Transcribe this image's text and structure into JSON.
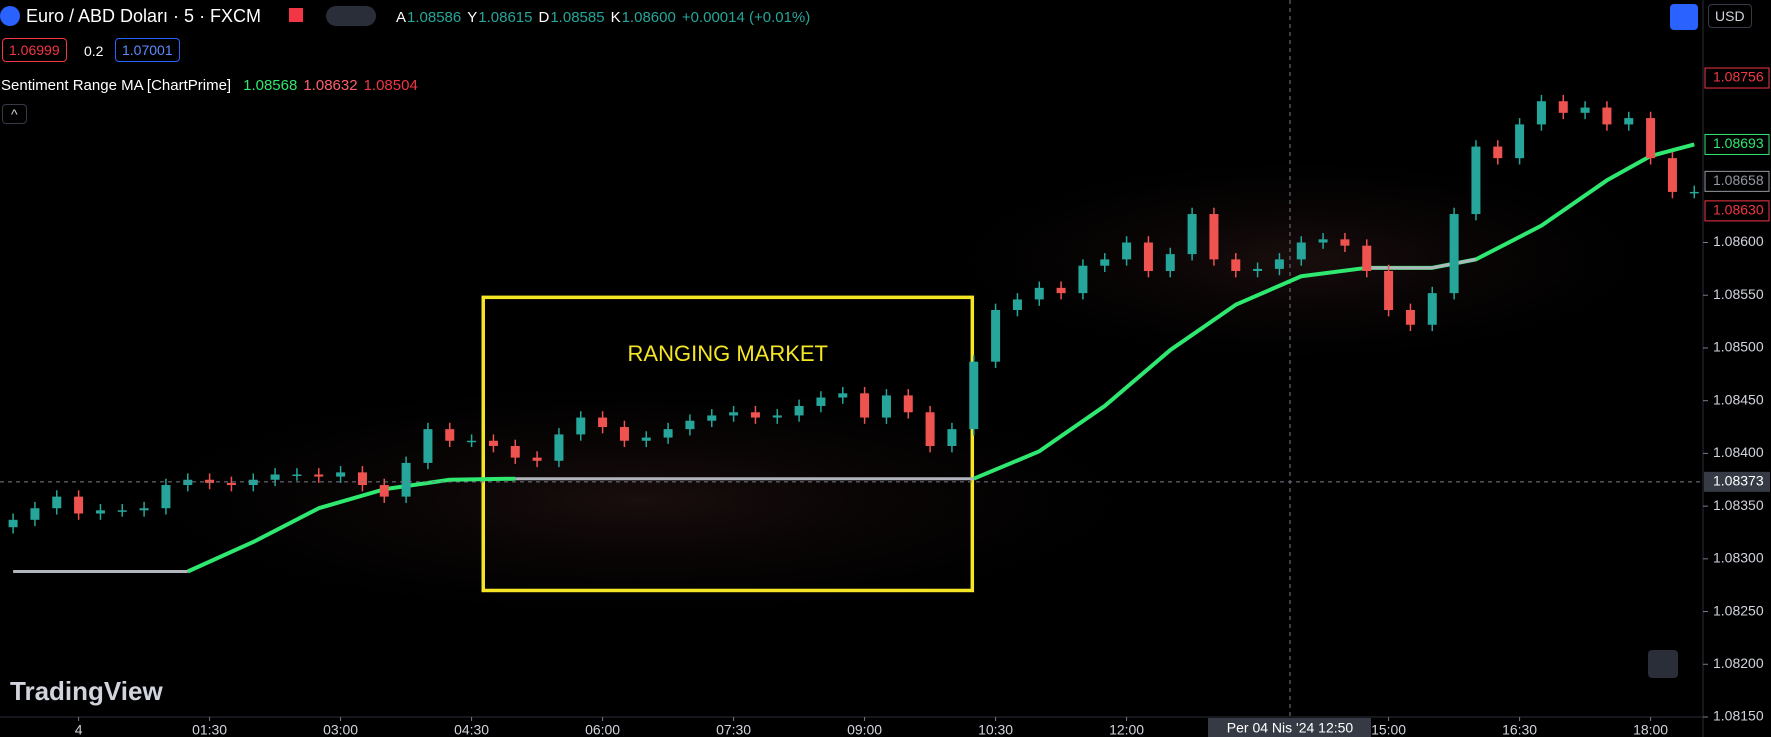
{
  "header": {
    "symbol": "Euro / ABD Doları · 5 · FXCM",
    "ohlc": [
      {
        "key": "A",
        "value": "1.08586"
      },
      {
        "key": "Y",
        "value": "1.08615"
      },
      {
        "key": "D",
        "value": "1.08585"
      },
      {
        "key": "K",
        "value": "1.08600"
      }
    ],
    "change": "+0.00014 (+0.01%)",
    "sell": "1.06999",
    "spread": "0.2",
    "buy": "1.07001",
    "indicator": {
      "name": "Sentiment Range MA [ChartPrime]",
      "values": [
        "1.08568",
        "1.08632",
        "1.08504"
      ]
    },
    "currency": "USD",
    "logo": "TradingView"
  },
  "chart_data": {
    "type": "candlestick",
    "up_color": "#26a69a",
    "down_color": "#ef5350",
    "x": [
      -45,
      -30,
      -15,
      0,
      15,
      30,
      45,
      60,
      75,
      90,
      105,
      120,
      135,
      150,
      165,
      180,
      195,
      210,
      225,
      240,
      255,
      270,
      285,
      300,
      315,
      330,
      345,
      360,
      375,
      390,
      405,
      420,
      435,
      450,
      465,
      480,
      495,
      510,
      525,
      540,
      555,
      570,
      585,
      600,
      615,
      630,
      645,
      660,
      675,
      690,
      705,
      720,
      735,
      750,
      765,
      780,
      795,
      810,
      825,
      840,
      855,
      870,
      885,
      900,
      915,
      930,
      945,
      960,
      975,
      990,
      1005,
      1020,
      1035,
      1050,
      1065,
      1080,
      1095,
      1110
    ],
    "open": [
      1.0833,
      1.08337,
      1.08348,
      1.08359,
      1.08343,
      1.08346,
      1.08346,
      1.08348,
      1.0837,
      1.08375,
      1.08372,
      1.0837,
      1.08375,
      1.0838,
      1.0838,
      1.08378,
      1.08382,
      1.0837,
      1.08359,
      1.08391,
      1.08423,
      1.08412,
      1.08412,
      1.08407,
      1.08396,
      1.08393,
      1.08418,
      1.08434,
      1.08425,
      1.08412,
      1.08415,
      1.08423,
      1.08431,
      1.08436,
      1.08439,
      1.08434,
      1.08436,
      1.08445,
      1.08453,
      1.08457,
      1.08434,
      1.08455,
      1.08439,
      1.08407,
      1.08423,
      1.08487,
      1.08536,
      1.08546,
      1.08557,
      1.08552,
      1.08578,
      1.08584,
      1.086,
      1.08573,
      1.08589,
      1.08627,
      1.08584,
      1.08573,
      1.08575,
      1.08584,
      1.086,
      1.08603,
      1.08597,
      1.08573,
      1.08536,
      1.08522,
      1.08552,
      1.08627,
      1.08691,
      1.0868,
      1.08712,
      1.08734,
      1.08723,
      1.08728,
      1.08712,
      1.08718,
      1.0868,
      1.08648
    ],
    "high": [
      1.08343,
      1.08354,
      1.08365,
      1.08365,
      1.08352,
      1.08352,
      1.08354,
      1.08376,
      1.08381,
      1.08381,
      1.08378,
      1.08381,
      1.08386,
      1.08386,
      1.08386,
      1.08388,
      1.08388,
      1.08376,
      1.08397,
      1.08429,
      1.08429,
      1.08418,
      1.08418,
      1.08413,
      1.08402,
      1.08424,
      1.0844,
      1.0844,
      1.08431,
      1.08421,
      1.08429,
      1.08437,
      1.08442,
      1.08445,
      1.08445,
      1.08442,
      1.08451,
      1.08459,
      1.08463,
      1.08463,
      1.08461,
      1.08461,
      1.08445,
      1.08429,
      1.08493,
      1.08542,
      1.08552,
      1.08563,
      1.08563,
      1.08584,
      1.0859,
      1.08606,
      1.08606,
      1.08595,
      1.08633,
      1.08633,
      1.0859,
      1.08581,
      1.0859,
      1.08606,
      1.08609,
      1.08609,
      1.08603,
      1.08579,
      1.08542,
      1.08558,
      1.08633,
      1.08697,
      1.08697,
      1.08718,
      1.0874,
      1.0874,
      1.08734,
      1.08734,
      1.08724,
      1.08724,
      1.08686,
      1.08654
    ],
    "low": [
      1.08324,
      1.08331,
      1.08342,
      1.08337,
      1.08337,
      1.0834,
      1.0834,
      1.08342,
      1.08364,
      1.08366,
      1.08364,
      1.08364,
      1.08369,
      1.08374,
      1.08372,
      1.08372,
      1.08364,
      1.08353,
      1.08353,
      1.08385,
      1.08406,
      1.08406,
      1.08401,
      1.0839,
      1.08387,
      1.08387,
      1.08412,
      1.08419,
      1.08406,
      1.08406,
      1.08409,
      1.08417,
      1.08425,
      1.0843,
      1.08428,
      1.08428,
      1.0843,
      1.08439,
      1.08447,
      1.08428,
      1.08428,
      1.08433,
      1.08401,
      1.08401,
      1.08417,
      1.08481,
      1.0853,
      1.0854,
      1.08546,
      1.08546,
      1.08572,
      1.08578,
      1.08567,
      1.08567,
      1.08583,
      1.08578,
      1.08567,
      1.08567,
      1.08569,
      1.08578,
      1.08594,
      1.08591,
      1.08567,
      1.0853,
      1.08516,
      1.08516,
      1.08546,
      1.08621,
      1.08674,
      1.08674,
      1.08706,
      1.08717,
      1.08717,
      1.08706,
      1.08706,
      1.08674,
      1.08642,
      1.08642
    ],
    "close": [
      1.08337,
      1.08348,
      1.08359,
      1.08343,
      1.08346,
      1.08346,
      1.08348,
      1.0837,
      1.08375,
      1.08372,
      1.0837,
      1.08375,
      1.0838,
      1.0838,
      1.08378,
      1.08382,
      1.0837,
      1.08359,
      1.08391,
      1.08423,
      1.08412,
      1.08412,
      1.08407,
      1.08396,
      1.08393,
      1.08418,
      1.08434,
      1.08425,
      1.08412,
      1.08415,
      1.08423,
      1.08431,
      1.08436,
      1.08439,
      1.08434,
      1.08436,
      1.08445,
      1.08453,
      1.08457,
      1.08434,
      1.08455,
      1.08439,
      1.08407,
      1.08423,
      1.08487,
      1.08536,
      1.08546,
      1.08557,
      1.08552,
      1.08578,
      1.08584,
      1.086,
      1.08573,
      1.08589,
      1.08627,
      1.08584,
      1.08573,
      1.08575,
      1.08584,
      1.086,
      1.08603,
      1.08597,
      1.08573,
      1.08536,
      1.08522,
      1.08552,
      1.08627,
      1.08691,
      1.0868,
      1.08712,
      1.08734,
      1.08723,
      1.08728,
      1.08712,
      1.08718,
      1.0868,
      1.08648,
      1.08648
    ],
    "lines": {
      "x": [
        -45,
        0,
        45,
        75,
        120,
        165,
        210,
        255,
        300,
        360,
        420,
        480,
        540,
        615,
        660,
        705,
        750,
        795,
        840,
        885,
        930,
        960,
        1005,
        1050,
        1080,
        1110
      ],
      "series": [
        {
          "color": "#2ee86f",
          "values": [
            null,
            null,
            null,
            1.08288,
            1.08316,
            1.08348,
            1.08366,
            1.08375,
            1.08376,
            null,
            null,
            null,
            null,
            1.08376,
            1.08402,
            1.08445,
            1.08498,
            1.08541,
            1.08568,
            1.08576,
            1.08576,
            1.08584,
            1.08616,
            1.08659,
            1.08682,
            1.08693
          ]
        },
        {
          "color": "#b2b5be",
          "values": [
            1.08288,
            1.08288,
            1.08288,
            1.08288,
            null,
            null,
            null,
            null,
            1.08376,
            1.08376,
            1.08376,
            1.08376,
            1.08376,
            1.08376,
            null,
            null,
            null,
            null,
            null,
            1.08576,
            1.08576,
            1.08584,
            null,
            null,
            null,
            null
          ]
        }
      ]
    },
    "annotation": {
      "text": "RANGING MARKET",
      "x": [
        278,
        614
      ],
      "y": [
        1.0827,
        1.08548
      ],
      "color": "#f5e625"
    },
    "xlim": [
      -54,
      1116
    ],
    "xticks": [
      {
        "value": 0,
        "label": "4"
      },
      {
        "value": 90,
        "label": "01:30"
      },
      {
        "value": 180,
        "label": "03:00"
      },
      {
        "value": 270,
        "label": "04:30"
      },
      {
        "value": 360,
        "label": "06:00"
      },
      {
        "value": 450,
        "label": "07:30"
      },
      {
        "value": 540,
        "label": "09:00"
      },
      {
        "value": 630,
        "label": "10:30"
      },
      {
        "value": 720,
        "label": "12:00"
      },
      {
        "value": 900,
        "label": "15:00"
      },
      {
        "value": 990,
        "label": "16:30"
      },
      {
        "value": 1080,
        "label": "18:00"
      }
    ],
    "ylim": [
      1.0815,
      1.0883
    ],
    "yticks": [
      {
        "value": 1.0815,
        "label": "1.08150"
      },
      {
        "value": 1.082,
        "label": "1.08200"
      },
      {
        "value": 1.0825,
        "label": "1.08250"
      },
      {
        "value": 1.083,
        "label": "1.08300"
      },
      {
        "value": 1.0835,
        "label": "1.08350"
      },
      {
        "value": 1.084,
        "label": "1.08400"
      },
      {
        "value": 1.0845,
        "label": "1.08450"
      },
      {
        "value": 1.085,
        "label": "1.08500"
      },
      {
        "value": 1.0855,
        "label": "1.08550"
      },
      {
        "value": 1.086,
        "label": "1.08600"
      }
    ],
    "price_badges": [
      {
        "value": 1.08756,
        "color": "#f23645"
      },
      {
        "value": 1.08693,
        "color": "#2ee86f"
      },
      {
        "value": 1.08658,
        "color": "#9598a1"
      },
      {
        "value": {
          "value": 1.0863,
          "label": "1.08630"
        },
        "color": "#f23645"
      }
    ],
    "crosshair": {
      "price": 1.08373,
      "time_label": "Per 04 Nis '24  12:50"
    }
  }
}
